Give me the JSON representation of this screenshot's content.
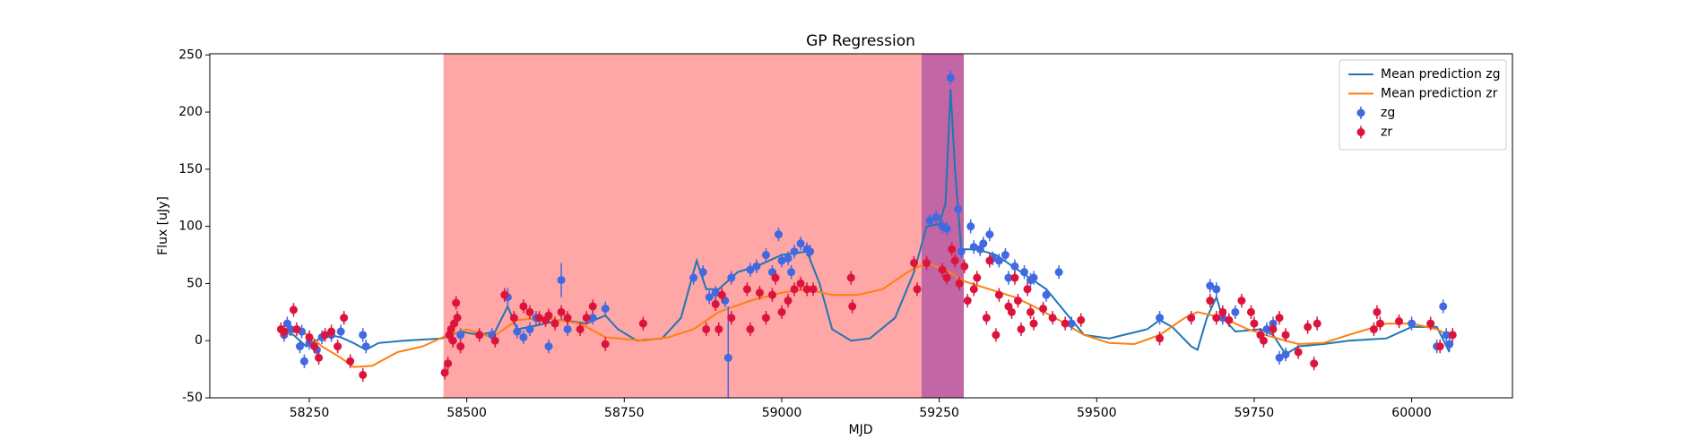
{
  "chart_data": {
    "type": "errorbar",
    "title": "GP Regression",
    "xlabel": "MJD",
    "ylabel": "Flux [uJy]",
    "xlim": [
      58092,
      60160
    ],
    "ylim": [
      -50,
      251
    ],
    "xticks": [
      58250,
      58500,
      58750,
      59000,
      59250,
      59500,
      59750,
      60000
    ],
    "yticks": [
      -50,
      0,
      50,
      100,
      150,
      200,
      250
    ],
    "legend": "upper right",
    "spans": [
      {
        "xmin": 58463,
        "xmax": 59222,
        "color": "#ffa6a6"
      },
      {
        "xmin": 59222,
        "xmax": 59289,
        "color": "#c266a6"
      }
    ],
    "series": [
      {
        "name": "Mean prediction zg",
        "type": "line",
        "color": "#1f77b4",
        "x": [
          58205,
          58225,
          58245,
          58260,
          58280,
          58300,
          58320,
          58340,
          58360,
          58400,
          58460,
          58490,
          58520,
          58545,
          58565,
          58580,
          58600,
          58650,
          58690,
          58720,
          58740,
          58770,
          58810,
          58840,
          58865,
          58880,
          58900,
          58930,
          58960,
          59000,
          59040,
          59060,
          59080,
          59110,
          59140,
          59180,
          59210,
          59230,
          59250,
          59260,
          59268,
          59275,
          59285,
          59310,
          59340,
          59380,
          59420,
          59450,
          59480,
          59520,
          59580,
          59600,
          59620,
          59650,
          59660,
          59675,
          59690,
          59700,
          59720,
          59760,
          59780,
          59800,
          59820,
          59860,
          59900,
          59960,
          60000,
          60040,
          60060
        ],
        "values": [
          8,
          5,
          -5,
          0,
          5,
          3,
          -2,
          -8,
          -2,
          0,
          2,
          8,
          5,
          8,
          30,
          10,
          12,
          18,
          15,
          22,
          10,
          0,
          2,
          20,
          70,
          45,
          45,
          60,
          65,
          75,
          78,
          50,
          10,
          0,
          2,
          20,
          60,
          100,
          102,
          120,
          220,
          150,
          80,
          80,
          75,
          60,
          45,
          25,
          5,
          2,
          10,
          18,
          12,
          -5,
          -8,
          20,
          38,
          20,
          8,
          10,
          5,
          -12,
          -5,
          -3,
          0,
          2,
          12,
          12,
          -10
        ]
      },
      {
        "name": "Mean prediction zr",
        "type": "line",
        "color": "#ff7f0e",
        "x": [
          58205,
          58230,
          58250,
          58270,
          58300,
          58320,
          58350,
          58390,
          58430,
          58470,
          58500,
          58540,
          58580,
          58620,
          58680,
          58720,
          58780,
          58820,
          58860,
          58900,
          58950,
          59000,
          59040,
          59080,
          59120,
          59160,
          59200,
          59230,
          59260,
          59290,
          59330,
          59370,
          59400,
          59440,
          59480,
          59520,
          59560,
          59600,
          59640,
          59660,
          59700,
          59740,
          59780,
          59820,
          59860,
          59900,
          59960,
          60000,
          60040,
          60065
        ],
        "values": [
          5,
          8,
          5,
          -5,
          -15,
          -23,
          -22,
          -10,
          -5,
          5,
          10,
          3,
          18,
          20,
          15,
          3,
          0,
          3,
          10,
          25,
          35,
          42,
          45,
          40,
          40,
          45,
          60,
          68,
          62,
          52,
          45,
          38,
          30,
          18,
          5,
          -2,
          -3,
          5,
          20,
          25,
          20,
          10,
          3,
          -3,
          -2,
          5,
          15,
          15,
          10,
          3
        ]
      },
      {
        "name": "zg",
        "type": "errorbar",
        "color": "#4169e1",
        "x": [
          58210,
          58215,
          58220,
          58235,
          58238,
          58242,
          58250,
          58262,
          58270,
          58285,
          58300,
          58335,
          58340,
          58490,
          58540,
          58565,
          58580,
          58590,
          58600,
          58610,
          58630,
          58650,
          58660,
          58700,
          58720,
          58860,
          58875,
          58885,
          58895,
          58910,
          58915,
          58920,
          58950,
          58960,
          58975,
          58985,
          58995,
          59000,
          59010,
          59015,
          59020,
          59030,
          59040,
          59045,
          59235,
          59245,
          59255,
          59262,
          59268,
          59280,
          59285,
          59300,
          59305,
          59315,
          59320,
          59330,
          59335,
          59345,
          59355,
          59360,
          59370,
          59385,
          59395,
          59400,
          59420,
          59440,
          59460,
          59600,
          59680,
          59690,
          59700,
          59720,
          59760,
          59770,
          59780,
          59790,
          59800,
          60000,
          60040,
          60050,
          60055,
          60060
        ],
        "values": [
          5,
          15,
          10,
          -5,
          8,
          -18,
          -2,
          -8,
          3,
          5,
          8,
          5,
          -5,
          5,
          5,
          38,
          8,
          3,
          10,
          20,
          -5,
          53,
          10,
          20,
          28,
          55,
          60,
          38,
          42,
          35,
          -15,
          55,
          62,
          65,
          75,
          60,
          93,
          70,
          72,
          60,
          78,
          85,
          80,
          78,
          105,
          108,
          100,
          98,
          230,
          115,
          78,
          100,
          82,
          80,
          85,
          93,
          72,
          70,
          75,
          55,
          65,
          60,
          53,
          55,
          40,
          60,
          15,
          20,
          48,
          45,
          20,
          25,
          5,
          10,
          15,
          -15,
          -12,
          15,
          -5,
          30,
          5,
          -3
        ],
        "yerr": [
          6,
          6,
          6,
          6,
          6,
          6,
          6,
          6,
          6,
          6,
          6,
          6,
          6,
          6,
          6,
          8,
          6,
          6,
          6,
          6,
          6,
          15,
          6,
          6,
          6,
          6,
          6,
          6,
          6,
          6,
          45,
          6,
          6,
          6,
          6,
          6,
          6,
          6,
          6,
          6,
          6,
          6,
          6,
          6,
          6,
          6,
          6,
          6,
          6,
          6,
          6,
          6,
          6,
          6,
          6,
          6,
          6,
          6,
          6,
          6,
          6,
          6,
          6,
          6,
          6,
          6,
          6,
          6,
          6,
          6,
          6,
          6,
          6,
          6,
          6,
          6,
          6,
          6,
          6,
          6,
          6,
          6
        ]
      },
      {
        "name": "zr",
        "type": "errorbar",
        "color": "#dc143c",
        "x": [
          58205,
          58210,
          58225,
          58230,
          58250,
          58258,
          58265,
          58275,
          58285,
          58295,
          58305,
          58315,
          58335,
          58465,
          58470,
          58472,
          58475,
          58478,
          58480,
          58483,
          58485,
          58490,
          58520,
          58545,
          58560,
          58575,
          58590,
          58600,
          58615,
          58625,
          58630,
          58640,
          58650,
          58660,
          58680,
          58690,
          58700,
          58720,
          58780,
          58880,
          58895,
          58900,
          58905,
          58920,
          58945,
          58950,
          58965,
          58975,
          58985,
          58990,
          59000,
          59010,
          59020,
          59030,
          59040,
          59050,
          59110,
          59112,
          59210,
          59215,
          59230,
          59255,
          59262,
          59270,
          59275,
          59282,
          59290,
          59295,
          59305,
          59310,
          59325,
          59330,
          59340,
          59345,
          59360,
          59365,
          59370,
          59375,
          59380,
          59390,
          59395,
          59400,
          59415,
          59430,
          59450,
          59475,
          59600,
          59650,
          59680,
          59690,
          59700,
          59710,
          59730,
          59745,
          59750,
          59760,
          59765,
          59780,
          59790,
          59800,
          59820,
          59835,
          59845,
          59850,
          59940,
          59945,
          59950,
          59980,
          60030,
          60045,
          60065
        ],
        "values": [
          10,
          8,
          27,
          10,
          3,
          -5,
          -15,
          5,
          8,
          -5,
          20,
          -18,
          -30,
          -28,
          -20,
          5,
          10,
          0,
          15,
          33,
          20,
          -5,
          5,
          0,
          40,
          20,
          30,
          25,
          20,
          18,
          22,
          15,
          25,
          20,
          10,
          20,
          30,
          -3,
          15,
          10,
          32,
          10,
          40,
          20,
          45,
          10,
          42,
          20,
          40,
          55,
          25,
          35,
          45,
          50,
          45,
          45,
          55,
          30,
          68,
          45,
          68,
          62,
          55,
          80,
          70,
          50,
          65,
          35,
          45,
          55,
          20,
          70,
          5,
          40,
          30,
          25,
          55,
          35,
          10,
          45,
          25,
          15,
          28,
          20,
          15,
          18,
          2,
          20,
          35,
          20,
          25,
          18,
          35,
          25,
          15,
          5,
          0,
          10,
          20,
          5,
          -10,
          12,
          -20,
          15,
          10,
          25,
          15,
          17,
          15,
          -5,
          5
        ],
        "yerr": [
          6,
          6,
          6,
          6,
          6,
          6,
          6,
          6,
          6,
          6,
          6,
          6,
          6,
          6,
          6,
          6,
          6,
          6,
          6,
          6,
          6,
          6,
          6,
          6,
          6,
          6,
          6,
          6,
          6,
          6,
          6,
          6,
          6,
          6,
          6,
          6,
          6,
          6,
          6,
          6,
          6,
          6,
          6,
          6,
          6,
          6,
          6,
          6,
          6,
          6,
          6,
          6,
          6,
          6,
          6,
          6,
          6,
          6,
          6,
          6,
          6,
          6,
          6,
          6,
          6,
          6,
          6,
          6,
          6,
          6,
          6,
          6,
          6,
          6,
          6,
          6,
          6,
          6,
          6,
          6,
          6,
          6,
          6,
          6,
          6,
          6,
          6,
          6,
          6,
          6,
          6,
          6,
          6,
          6,
          6,
          6,
          6,
          6,
          6,
          6,
          6,
          6,
          6,
          6,
          6,
          6,
          6,
          6,
          6,
          6,
          6
        ]
      }
    ]
  }
}
